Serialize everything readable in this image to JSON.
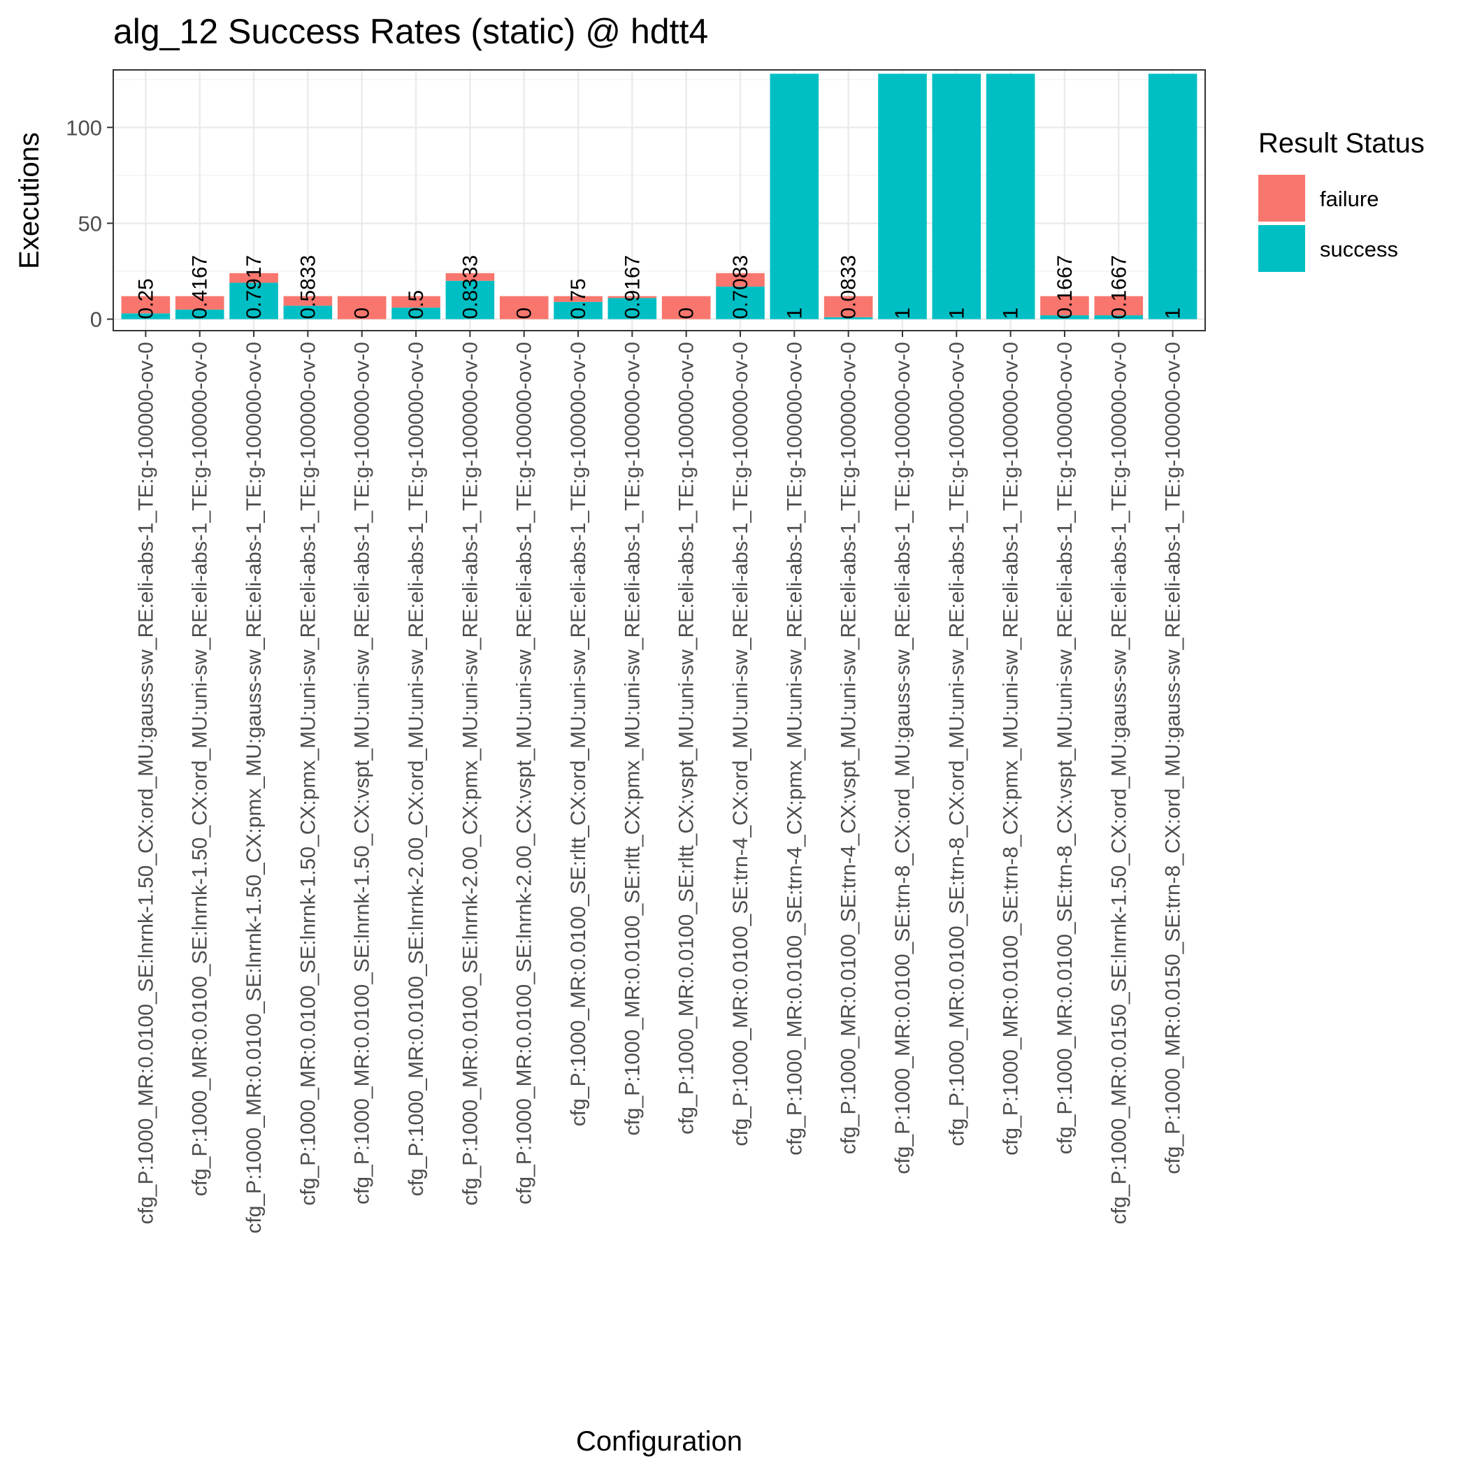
{
  "chart_data": {
    "type": "bar",
    "stacked": true,
    "title": "alg_12 Success Rates (static) @ hdtt4",
    "xlabel": "Configuration",
    "ylabel": "Executions",
    "ylim": [
      -6,
      130
    ],
    "yticks": [
      0,
      50,
      100
    ],
    "grid": true,
    "legend": {
      "title": "Result Status",
      "position": "right",
      "entries": [
        {
          "name": "failure",
          "color": "#F8766D"
        },
        {
          "name": "success",
          "color": "#00BFC4"
        }
      ]
    },
    "categories": [
      "cfg_P:1000_MR:0.0100_SE:lnrnk-1.50_CX:ord_MU:gauss-sw_RE:eli-abs-1_TE:g-100000-ov-0",
      "cfg_P:1000_MR:0.0100_SE:lnrnk-1.50_CX:ord_MU:uni-sw_RE:eli-abs-1_TE:g-100000-ov-0",
      "cfg_P:1000_MR:0.0100_SE:lnrnk-1.50_CX:pmx_MU:gauss-sw_RE:eli-abs-1_TE:g-100000-ov-0",
      "cfg_P:1000_MR:0.0100_SE:lnrnk-1.50_CX:pmx_MU:uni-sw_RE:eli-abs-1_TE:g-100000-ov-0",
      "cfg_P:1000_MR:0.0100_SE:lnrnk-1.50_CX:vspt_MU:uni-sw_RE:eli-abs-1_TE:g-100000-ov-0",
      "cfg_P:1000_MR:0.0100_SE:lnrnk-2.00_CX:ord_MU:uni-sw_RE:eli-abs-1_TE:g-100000-ov-0",
      "cfg_P:1000_MR:0.0100_SE:lnrnk-2.00_CX:pmx_MU:uni-sw_RE:eli-abs-1_TE:g-100000-ov-0",
      "cfg_P:1000_MR:0.0100_SE:lnrnk-2.00_CX:vspt_MU:uni-sw_RE:eli-abs-1_TE:g-100000-ov-0",
      "cfg_P:1000_MR:0.0100_SE:rltt_CX:ord_MU:uni-sw_RE:eli-abs-1_TE:g-100000-ov-0",
      "cfg_P:1000_MR:0.0100_SE:rltt_CX:pmx_MU:uni-sw_RE:eli-abs-1_TE:g-100000-ov-0",
      "cfg_P:1000_MR:0.0100_SE:rltt_CX:vspt_MU:uni-sw_RE:eli-abs-1_TE:g-100000-ov-0",
      "cfg_P:1000_MR:0.0100_SE:trn-4_CX:ord_MU:uni-sw_RE:eli-abs-1_TE:g-100000-ov-0",
      "cfg_P:1000_MR:0.0100_SE:trn-4_CX:pmx_MU:uni-sw_RE:eli-abs-1_TE:g-100000-ov-0",
      "cfg_P:1000_MR:0.0100_SE:trn-4_CX:vspt_MU:uni-sw_RE:eli-abs-1_TE:g-100000-ov-0",
      "cfg_P:1000_MR:0.0100_SE:trn-8_CX:ord_MU:gauss-sw_RE:eli-abs-1_TE:g-100000-ov-0",
      "cfg_P:1000_MR:0.0100_SE:trn-8_CX:ord_MU:uni-sw_RE:eli-abs-1_TE:g-100000-ov-0",
      "cfg_P:1000_MR:0.0100_SE:trn-8_CX:pmx_MU:uni-sw_RE:eli-abs-1_TE:g-100000-ov-0",
      "cfg_P:1000_MR:0.0100_SE:trn-8_CX:vspt_MU:uni-sw_RE:eli-abs-1_TE:g-100000-ov-0",
      "cfg_P:1000_MR:0.0150_SE:lnrnk-1.50_CX:ord_MU:gauss-sw_RE:eli-abs-1_TE:g-100000-ov-0",
      "cfg_P:1000_MR:0.0150_SE:trn-8_CX:ord_MU:gauss-sw_RE:eli-abs-1_TE:g-100000-ov-0"
    ],
    "series": [
      {
        "name": "success",
        "values": [
          3,
          5,
          19,
          7,
          0,
          6,
          20,
          0,
          9,
          11,
          0,
          17,
          128,
          1,
          128,
          128,
          128,
          2,
          2,
          128
        ]
      },
      {
        "name": "failure",
        "values": [
          9,
          7,
          5,
          5,
          12,
          6,
          4,
          12,
          3,
          1,
          12,
          7,
          0,
          11,
          0,
          0,
          0,
          10,
          10,
          0
        ]
      }
    ],
    "labels": [
      "0.25",
      "0.4167",
      "0.7917",
      "0.5833",
      "0",
      "0.5",
      "0.8333",
      "0",
      "0.75",
      "0.9167",
      "0",
      "0.7083",
      "1",
      "0.0833",
      "1",
      "1",
      "1",
      "0.1667",
      "0.1667",
      "1"
    ]
  }
}
